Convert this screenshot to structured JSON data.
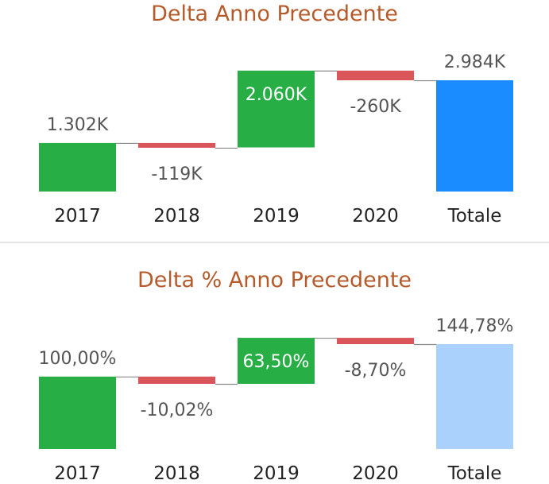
{
  "chart_data": [
    {
      "type": "waterfall",
      "title": "Delta Anno Precedente",
      "categories": [
        "2017",
        "2018",
        "2019",
        "2020",
        "Totale"
      ],
      "values": [
        1302,
        -119,
        2060,
        -260,
        2984
      ],
      "labels": [
        "1.302K",
        "-119K",
        "2.060K",
        "-260K",
        "2.984K"
      ],
      "colors": {
        "increase": "#27ae45",
        "decrease": "#d9555a",
        "total": "#1a8cff"
      },
      "ylim": [
        0,
        3000
      ]
    },
    {
      "type": "waterfall",
      "title": "Delta % Anno Precedente",
      "categories": [
        "2017",
        "2018",
        "2019",
        "2020",
        "Totale"
      ],
      "values": [
        100.0,
        -10.02,
        63.5,
        -8.7,
        144.78
      ],
      "labels": [
        "100,00%",
        "-10,02%",
        "63,50%",
        "-8,70%",
        "144,78%"
      ],
      "colors": {
        "increase": "#27ae45",
        "decrease": "#d9555a",
        "total": "#a9d1fb"
      },
      "ylim": [
        0,
        150
      ]
    }
  ]
}
